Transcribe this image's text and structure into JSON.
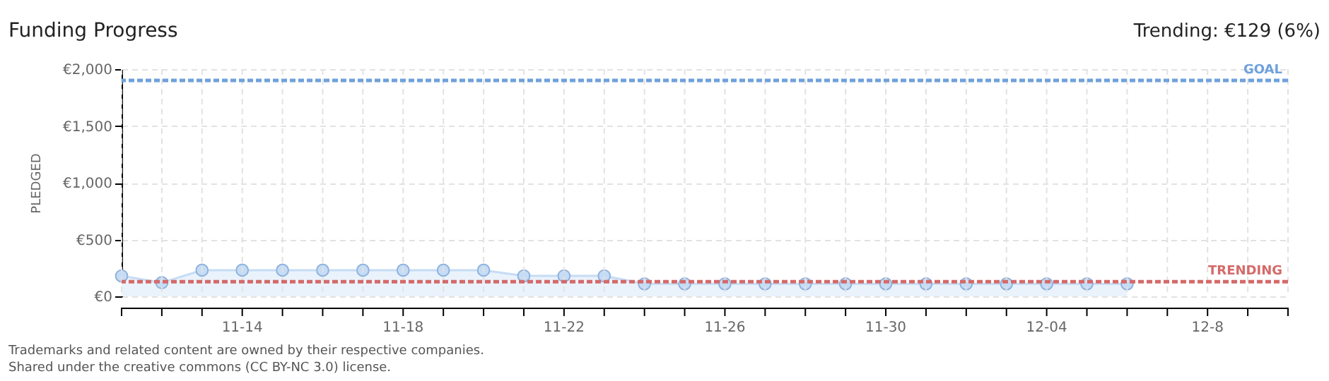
{
  "chart_data": {
    "type": "area",
    "title": "Funding Progress",
    "ylabel": "PLEDGED",
    "annotations": [
      "Trending: €129 (6%)",
      "Trademarks and related content are owned by their respective companies.",
      "Shared under the creative commons (CC BY-NC 3.0) license."
    ],
    "x": [
      "--11-11",
      "--11-12",
      "--11-13",
      "--11-14",
      "--11-15",
      "--11-16",
      "--11-17",
      "--11-18",
      "--11-19",
      "--11-20",
      "--11-21",
      "--11-22",
      "--11-23",
      "--11-24",
      "--11-25",
      "--11-26",
      "--11-27",
      "--11-28",
      "--11-29",
      "--11-30",
      "--12-01",
      "--12-02",
      "--12-03",
      "--12-04",
      "--12-05",
      "--12-06"
    ],
    "series": [
      {
        "color": "#c6dcf5",
        "values": [
          180,
          120,
          230,
          230,
          230,
          230,
          230,
          230,
          230,
          230,
          180,
          180,
          180,
          110,
          110,
          110,
          110,
          110,
          110,
          110,
          110,
          110,
          110,
          110,
          110,
          110
        ]
      }
    ],
    "marker": "circle",
    "grid": true,
    "xlim": [
      "--11-11",
      "--12-10"
    ],
    "xticks": [
      {
        "value": "--11-11",
        "label": null
      },
      {
        "value": "--11-12",
        "label": null
      },
      {
        "value": "--11-13",
        "label": null
      },
      {
        "value": "--11-14",
        "label": "11-14"
      },
      {
        "value": "--11-15",
        "label": null
      },
      {
        "value": "--11-16",
        "label": null
      },
      {
        "value": "--11-17",
        "label": null
      },
      {
        "value": "--11-18",
        "label": "11-18"
      },
      {
        "value": "--11-19",
        "label": null
      },
      {
        "value": "--11-20",
        "label": null
      },
      {
        "value": "--11-21",
        "label": null
      },
      {
        "value": "--11-22",
        "label": "11-22"
      },
      {
        "value": "--11-23",
        "label": null
      },
      {
        "value": "--11-24",
        "label": null
      },
      {
        "value": "--11-25",
        "label": null
      },
      {
        "value": "--11-26",
        "label": "11-26"
      },
      {
        "value": "--11-27",
        "label": null
      },
      {
        "value": "--11-28",
        "label": null
      },
      {
        "value": "--11-29",
        "label": null
      },
      {
        "value": "--11-30",
        "label": "11-30"
      },
      {
        "value": "--12-01",
        "label": null
      },
      {
        "value": "--12-02",
        "label": null
      },
      {
        "value": "--12-03",
        "label": null
      },
      {
        "value": "--12-04",
        "label": "12-04"
      },
      {
        "value": "--12-05",
        "label": null
      },
      {
        "value": "--12-06",
        "label": null
      },
      {
        "value": "--12-07",
        "label": null
      },
      {
        "value": "--12-08",
        "label": "12-8"
      },
      {
        "value": "--12-09",
        "label": null
      },
      {
        "value": "--12-10",
        "label": null
      }
    ],
    "ylim": [
      0,
      2000
    ],
    "yticks": [
      {
        "value": 0,
        "label": "€0"
      },
      {
        "value": 500,
        "label": "€500"
      },
      {
        "value": 1000,
        "label": "€1,000"
      },
      {
        "value": 1500,
        "label": "€1,500"
      },
      {
        "value": 2000,
        "label": "€2,000"
      }
    ],
    "ref_lines": [
      {
        "axis": "y",
        "value": 1900,
        "label": "GOAL",
        "color": "#6fa1dc",
        "line_style": "dashed"
      },
      {
        "axis": "y",
        "value": 129,
        "label": "TRENDING",
        "color": "#d46a6a",
        "line_style": "dashed"
      }
    ]
  }
}
